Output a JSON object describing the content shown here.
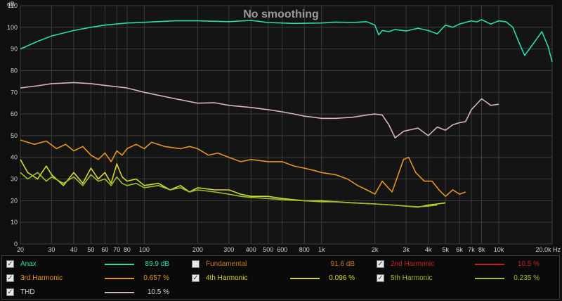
{
  "chart_data": {
    "type": "line",
    "title": "No smoothing",
    "xlabel": "Hz",
    "ylabel": "dB",
    "xscale": "log",
    "xlim": [
      20,
      20000
    ],
    "ylim": [
      0,
      110
    ],
    "grid": true,
    "x_ticks": [
      20,
      30,
      40,
      50,
      60,
      70,
      80,
      100,
      200,
      300,
      400,
      500,
      600,
      800,
      1000,
      2000,
      3000,
      4000,
      5000,
      6000,
      7000,
      8000,
      10000,
      20000
    ],
    "x_tick_labels": [
      "20",
      "30",
      "40",
      "50",
      "60",
      "70",
      "80",
      "100",
      "200",
      "300",
      "400",
      "500",
      "600",
      "800",
      "1k",
      "2k",
      "3k",
      "4k",
      "5k",
      "6k",
      "7k",
      "8k",
      "10k",
      "20.0k Hz"
    ],
    "y_ticks": [
      0,
      10,
      20,
      30,
      40,
      50,
      60,
      70,
      80,
      90,
      100,
      110
    ],
    "series": [
      {
        "name": "Anax",
        "color": "#29dcb0",
        "points": [
          [
            20,
            90
          ],
          [
            25,
            93.5
          ],
          [
            30,
            96
          ],
          [
            40,
            98.5
          ],
          [
            50,
            100
          ],
          [
            60,
            101
          ],
          [
            80,
            102
          ],
          [
            100,
            102.3
          ],
          [
            150,
            103
          ],
          [
            200,
            103
          ],
          [
            300,
            102.6
          ],
          [
            400,
            103.2
          ],
          [
            500,
            102.2
          ],
          [
            700,
            101.8
          ],
          [
            1000,
            102
          ],
          [
            1200,
            102.4
          ],
          [
            1500,
            102.2
          ],
          [
            1800,
            102.6
          ],
          [
            2000,
            101
          ],
          [
            2100,
            96.5
          ],
          [
            2200,
            98.5
          ],
          [
            2400,
            98
          ],
          [
            2600,
            99
          ],
          [
            3000,
            98.3
          ],
          [
            3500,
            99.6
          ],
          [
            4000,
            98.5
          ],
          [
            4500,
            97
          ],
          [
            5000,
            101
          ],
          [
            5500,
            100
          ],
          [
            6000,
            101.5
          ],
          [
            7000,
            103
          ],
          [
            7500,
            102.5
          ],
          [
            8000,
            103.5
          ],
          [
            9000,
            101.5
          ],
          [
            10000,
            103
          ],
          [
            11000,
            102.5
          ],
          [
            12000,
            100
          ],
          [
            13000,
            93
          ],
          [
            14000,
            87
          ],
          [
            15500,
            92
          ],
          [
            17500,
            98
          ],
          [
            19000,
            91
          ],
          [
            20000,
            84
          ]
        ]
      },
      {
        "name": "THD",
        "color": "#d9b6b6",
        "points": [
          [
            20,
            72
          ],
          [
            25,
            73
          ],
          [
            30,
            74
          ],
          [
            40,
            74.5
          ],
          [
            50,
            74
          ],
          [
            60,
            73.2
          ],
          [
            80,
            72
          ],
          [
            100,
            70
          ],
          [
            150,
            67
          ],
          [
            200,
            65
          ],
          [
            250,
            65.2
          ],
          [
            300,
            64
          ],
          [
            400,
            63
          ],
          [
            500,
            62
          ],
          [
            600,
            61
          ],
          [
            700,
            60
          ],
          [
            800,
            59
          ],
          [
            900,
            58.5
          ],
          [
            1000,
            58
          ],
          [
            1200,
            58
          ],
          [
            1500,
            58.5
          ],
          [
            1800,
            59.5
          ],
          [
            2000,
            60
          ],
          [
            2200,
            59.5
          ],
          [
            2400,
            55
          ],
          [
            2600,
            49
          ],
          [
            2900,
            52
          ],
          [
            3500,
            53.5
          ],
          [
            4000,
            50
          ],
          [
            4500,
            54
          ],
          [
            5000,
            52.5
          ],
          [
            5500,
            55
          ],
          [
            6000,
            56
          ],
          [
            6500,
            56.5
          ],
          [
            7000,
            62
          ],
          [
            8000,
            67
          ],
          [
            8500,
            65.5
          ],
          [
            9000,
            64
          ],
          [
            10000,
            64.5
          ]
        ]
      },
      {
        "name": "2nd Harmonic",
        "color": "#c82020",
        "points": []
      },
      {
        "name": "3rd Harmonic",
        "color": "#e8941c",
        "points": [
          [
            20,
            48
          ],
          [
            24,
            46
          ],
          [
            28,
            47.5
          ],
          [
            32,
            44
          ],
          [
            36,
            46
          ],
          [
            40,
            43
          ],
          [
            45,
            45
          ],
          [
            50,
            41
          ],
          [
            55,
            39
          ],
          [
            60,
            42
          ],
          [
            65,
            38
          ],
          [
            70,
            43
          ],
          [
            75,
            41
          ],
          [
            80,
            44
          ],
          [
            90,
            46
          ],
          [
            100,
            44
          ],
          [
            110,
            47
          ],
          [
            130,
            45
          ],
          [
            160,
            44
          ],
          [
            180,
            45
          ],
          [
            200,
            44
          ],
          [
            230,
            41
          ],
          [
            260,
            42
          ],
          [
            300,
            40
          ],
          [
            350,
            38
          ],
          [
            400,
            39
          ],
          [
            500,
            38
          ],
          [
            600,
            38
          ],
          [
            700,
            36
          ],
          [
            800,
            35
          ],
          [
            900,
            34
          ],
          [
            1000,
            33
          ],
          [
            1200,
            32
          ],
          [
            1400,
            30
          ],
          [
            1600,
            27
          ],
          [
            1800,
            25
          ],
          [
            2000,
            23
          ],
          [
            2200,
            29
          ],
          [
            2500,
            24
          ],
          [
            2900,
            39
          ],
          [
            3100,
            40
          ],
          [
            3400,
            33
          ],
          [
            3800,
            29
          ],
          [
            4200,
            29
          ],
          [
            4600,
            25
          ],
          [
            5000,
            22
          ],
          [
            5500,
            25
          ],
          [
            6000,
            23
          ],
          [
            6500,
            24
          ]
        ]
      },
      {
        "name": "4th Harmonic",
        "color": "#d7d52f",
        "points": [
          [
            20,
            39
          ],
          [
            22,
            33
          ],
          [
            25,
            30
          ],
          [
            28,
            36
          ],
          [
            30,
            32
          ],
          [
            35,
            27
          ],
          [
            40,
            33
          ],
          [
            45,
            28
          ],
          [
            50,
            35
          ],
          [
            55,
            30
          ],
          [
            60,
            33
          ],
          [
            65,
            28
          ],
          [
            70,
            37
          ],
          [
            75,
            31
          ],
          [
            80,
            29
          ],
          [
            90,
            30
          ],
          [
            100,
            27
          ],
          [
            120,
            28
          ],
          [
            140,
            25
          ],
          [
            160,
            27
          ],
          [
            180,
            24
          ],
          [
            200,
            26
          ],
          [
            250,
            25
          ],
          [
            300,
            25
          ],
          [
            350,
            23
          ],
          [
            400,
            22
          ],
          [
            500,
            22
          ],
          [
            600,
            21
          ],
          [
            800,
            20
          ],
          [
            1000,
            20
          ],
          [
            1200,
            19.5
          ],
          [
            1500,
            19
          ],
          [
            2000,
            18.5
          ],
          [
            2500,
            18
          ],
          [
            3000,
            17.5
          ],
          [
            3500,
            17
          ],
          [
            4000,
            18
          ],
          [
            4500,
            18.5
          ],
          [
            5000,
            19
          ]
        ]
      },
      {
        "name": "5th Harmonic",
        "color": "#9ac22a",
        "points": [
          [
            20,
            33
          ],
          [
            22,
            30
          ],
          [
            25,
            33
          ],
          [
            28,
            29
          ],
          [
            30,
            31
          ],
          [
            35,
            28
          ],
          [
            40,
            31
          ],
          [
            45,
            27
          ],
          [
            50,
            32
          ],
          [
            55,
            29
          ],
          [
            60,
            30
          ],
          [
            65,
            27
          ],
          [
            70,
            31
          ],
          [
            75,
            28
          ],
          [
            80,
            27
          ],
          [
            90,
            28
          ],
          [
            100,
            26
          ],
          [
            120,
            27
          ],
          [
            140,
            25
          ],
          [
            160,
            26
          ],
          [
            180,
            24
          ],
          [
            200,
            25
          ],
          [
            250,
            24
          ],
          [
            300,
            23
          ],
          [
            350,
            22
          ],
          [
            400,
            21.5
          ],
          [
            500,
            21
          ],
          [
            600,
            20.5
          ],
          [
            800,
            20
          ],
          [
            1000,
            19.5
          ],
          [
            1200,
            19.5
          ],
          [
            1500,
            19
          ],
          [
            2000,
            18.5
          ],
          [
            2500,
            18
          ],
          [
            3000,
            17.5
          ],
          [
            3500,
            17.2
          ],
          [
            4000,
            17.5
          ],
          [
            4500,
            18
          ]
        ]
      }
    ]
  },
  "legend": {
    "anax": {
      "label": "Anax",
      "value": "89.9 dB",
      "checked": true
    },
    "fundamental": {
      "label": "Fundamental",
      "value": "91.6 dB",
      "checked": false
    },
    "h2": {
      "label": "2nd Harmonic",
      "value": "10.5 %",
      "checked": true
    },
    "h3": {
      "label": "3rd Harmonic",
      "value": "0.657 %",
      "checked": true
    },
    "h4": {
      "label": "4th Harmonic",
      "value": "0.096 %",
      "checked": true
    },
    "h5": {
      "label": "5th Harmonic",
      "value": "0.235 %",
      "checked": true
    },
    "thd": {
      "label": "THD",
      "value": "10.5 %",
      "checked": true
    }
  },
  "colors": {
    "anax": "#29dcb0",
    "fundamental": "#c8781e",
    "h2": "#c82020",
    "h3": "#e8941c",
    "h4": "#d7d52f",
    "h5": "#9ac22a",
    "thd": "#d9b6b6"
  }
}
